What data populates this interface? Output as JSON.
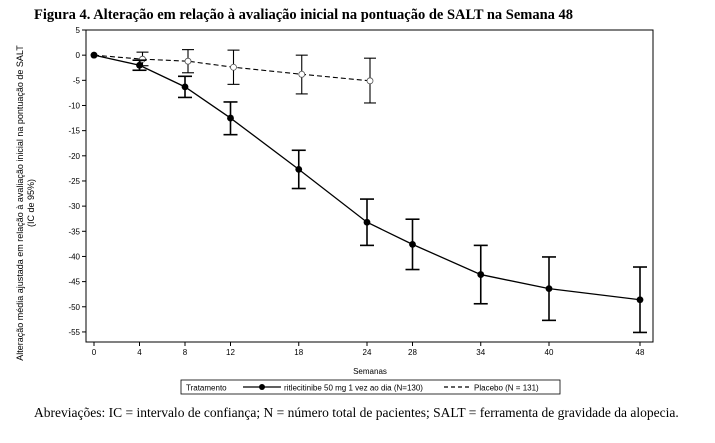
{
  "title": "Figura 4. Alteração em relação à avaliação inicial na pontuação de SALT na Semana 48",
  "note": "Abreviações: IC = intervalo de confiança; N = número total de pacientes; SALT = ferramenta de gravidade da alopecia.",
  "chart_data": {
    "type": "line",
    "xlabel": "Semanas",
    "ylabel": "Alteração média ajustada em relação à avaliação inicial na pontuação de SALT (IC de 95%)",
    "x_ticks": [
      0,
      4,
      8,
      12,
      18,
      24,
      28,
      34,
      40,
      48
    ],
    "y_ticks": [
      5,
      0,
      -5,
      -10,
      -15,
      -20,
      -25,
      -30,
      -35,
      -40,
      -45,
      -50,
      -55
    ],
    "xlim": [
      0,
      48
    ],
    "ylim": [
      -57,
      5
    ],
    "grid": false,
    "legend": {
      "title": "Tratamento",
      "position": "bottom"
    },
    "series": [
      {
        "name": "ritlecitinibe 50 mg 1 vez ao dia (N=130)",
        "style": "solid",
        "marker": "filled-circle",
        "color": "#000000",
        "x": [
          0,
          4,
          8,
          12,
          18,
          24,
          28,
          34,
          40,
          48
        ],
        "y": [
          0,
          -2,
          -6.3,
          -12.5,
          -22.7,
          -33.2,
          -37.6,
          -43.6,
          -46.4,
          -48.6
        ],
        "ci_low": [
          0,
          -3,
          -8.4,
          -15.8,
          -26.5,
          -37.8,
          -42.6,
          -49.4,
          -52.7,
          -55.1
        ],
        "ci_high": [
          0,
          -1,
          -4.2,
          -9.3,
          -18.9,
          -28.6,
          -32.6,
          -37.8,
          -40.1,
          -42.1
        ]
      },
      {
        "name": "Placebo (N = 131)",
        "style": "dashed",
        "marker": "open-circle",
        "color": "#000000",
        "x": [
          0,
          4,
          8,
          12,
          18,
          24
        ],
        "y": [
          0,
          -0.8,
          -1.2,
          -2.4,
          -3.8,
          -5.1
        ],
        "ci_low": [
          0,
          -2.1,
          -3.5,
          -5.8,
          -7.7,
          -9.5
        ],
        "ci_high": [
          0,
          0.6,
          1.1,
          1.0,
          0.0,
          -0.6
        ]
      }
    ]
  }
}
